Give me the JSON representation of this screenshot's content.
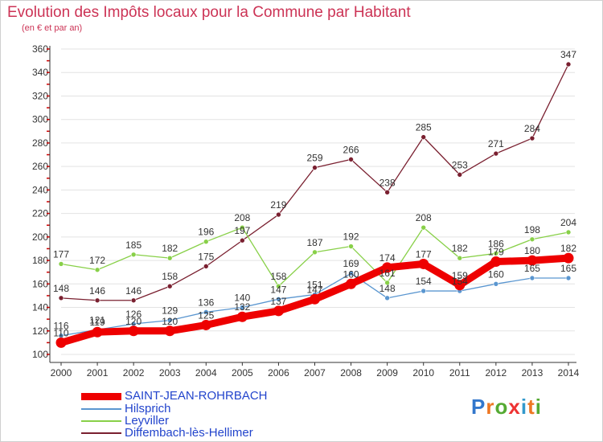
{
  "title": "Evolution des Impôts locaux pour la Commune par Habitant",
  "subtitle": "(en € et par an)",
  "logo_text": "Proxiti",
  "colors": {
    "title": "#cc3355",
    "legend_text": "#2244cc",
    "grid": "#e3e3e3",
    "axis": "#333333",
    "tick_red": "#cc0000"
  },
  "chart_data": {
    "type": "line",
    "x": [
      2000,
      2001,
      2002,
      2003,
      2004,
      2005,
      2006,
      2007,
      2008,
      2009,
      2010,
      2011,
      2012,
      2013,
      2014
    ],
    "ylim": [
      100,
      360
    ],
    "y_ticks": [
      100,
      120,
      140,
      160,
      180,
      200,
      220,
      240,
      260,
      280,
      300,
      320,
      340,
      360
    ],
    "grid": "horizontal",
    "legend_position": "bottom-left",
    "series": [
      {
        "name": "SAINT-JEAN-ROHRBACH",
        "color": "#ee0000",
        "values": [
          110,
          119,
          120,
          120,
          125,
          132,
          137,
          147,
          160,
          174,
          177,
          159,
          179,
          180,
          182
        ],
        "labels": [
          "110",
          "119",
          "120",
          "120",
          "125",
          "132",
          "137",
          "147",
          "160",
          "174",
          "177",
          "159",
          "179",
          "180",
          "182"
        ]
      },
      {
        "name": "Hilsprich",
        "color": "#5a96d0",
        "values": [
          116,
          121,
          126,
          129,
          136,
          140,
          147,
          151,
          169,
          148,
          154,
          154,
          160,
          165,
          165
        ],
        "labels": [
          "116",
          "121",
          "126",
          "129",
          "136",
          "140",
          "147",
          "151",
          "169",
          "148",
          "154",
          "154",
          "160",
          "165",
          "165"
        ]
      },
      {
        "name": "Leyviller",
        "color": "#88d048",
        "values": [
          177,
          172,
          185,
          182,
          196,
          208,
          158,
          187,
          192,
          161,
          208,
          182,
          186,
          198,
          204
        ],
        "labels": [
          "177",
          "172",
          "185",
          "182",
          "196",
          "208",
          "158",
          "187",
          "192",
          "161",
          "208",
          "182",
          "186",
          "198",
          "204"
        ]
      },
      {
        "name": "Diffembach-lès-Hellimer",
        "color": "#7a2030",
        "values": [
          148,
          146,
          146,
          158,
          175,
          197,
          219,
          259,
          266,
          238,
          285,
          253,
          271,
          284,
          347
        ],
        "labels": [
          "148",
          "146",
          "146",
          "158",
          "175",
          "197",
          "219",
          "259",
          "266",
          "238",
          "285",
          "253",
          "271",
          "284",
          "347"
        ]
      }
    ]
  }
}
